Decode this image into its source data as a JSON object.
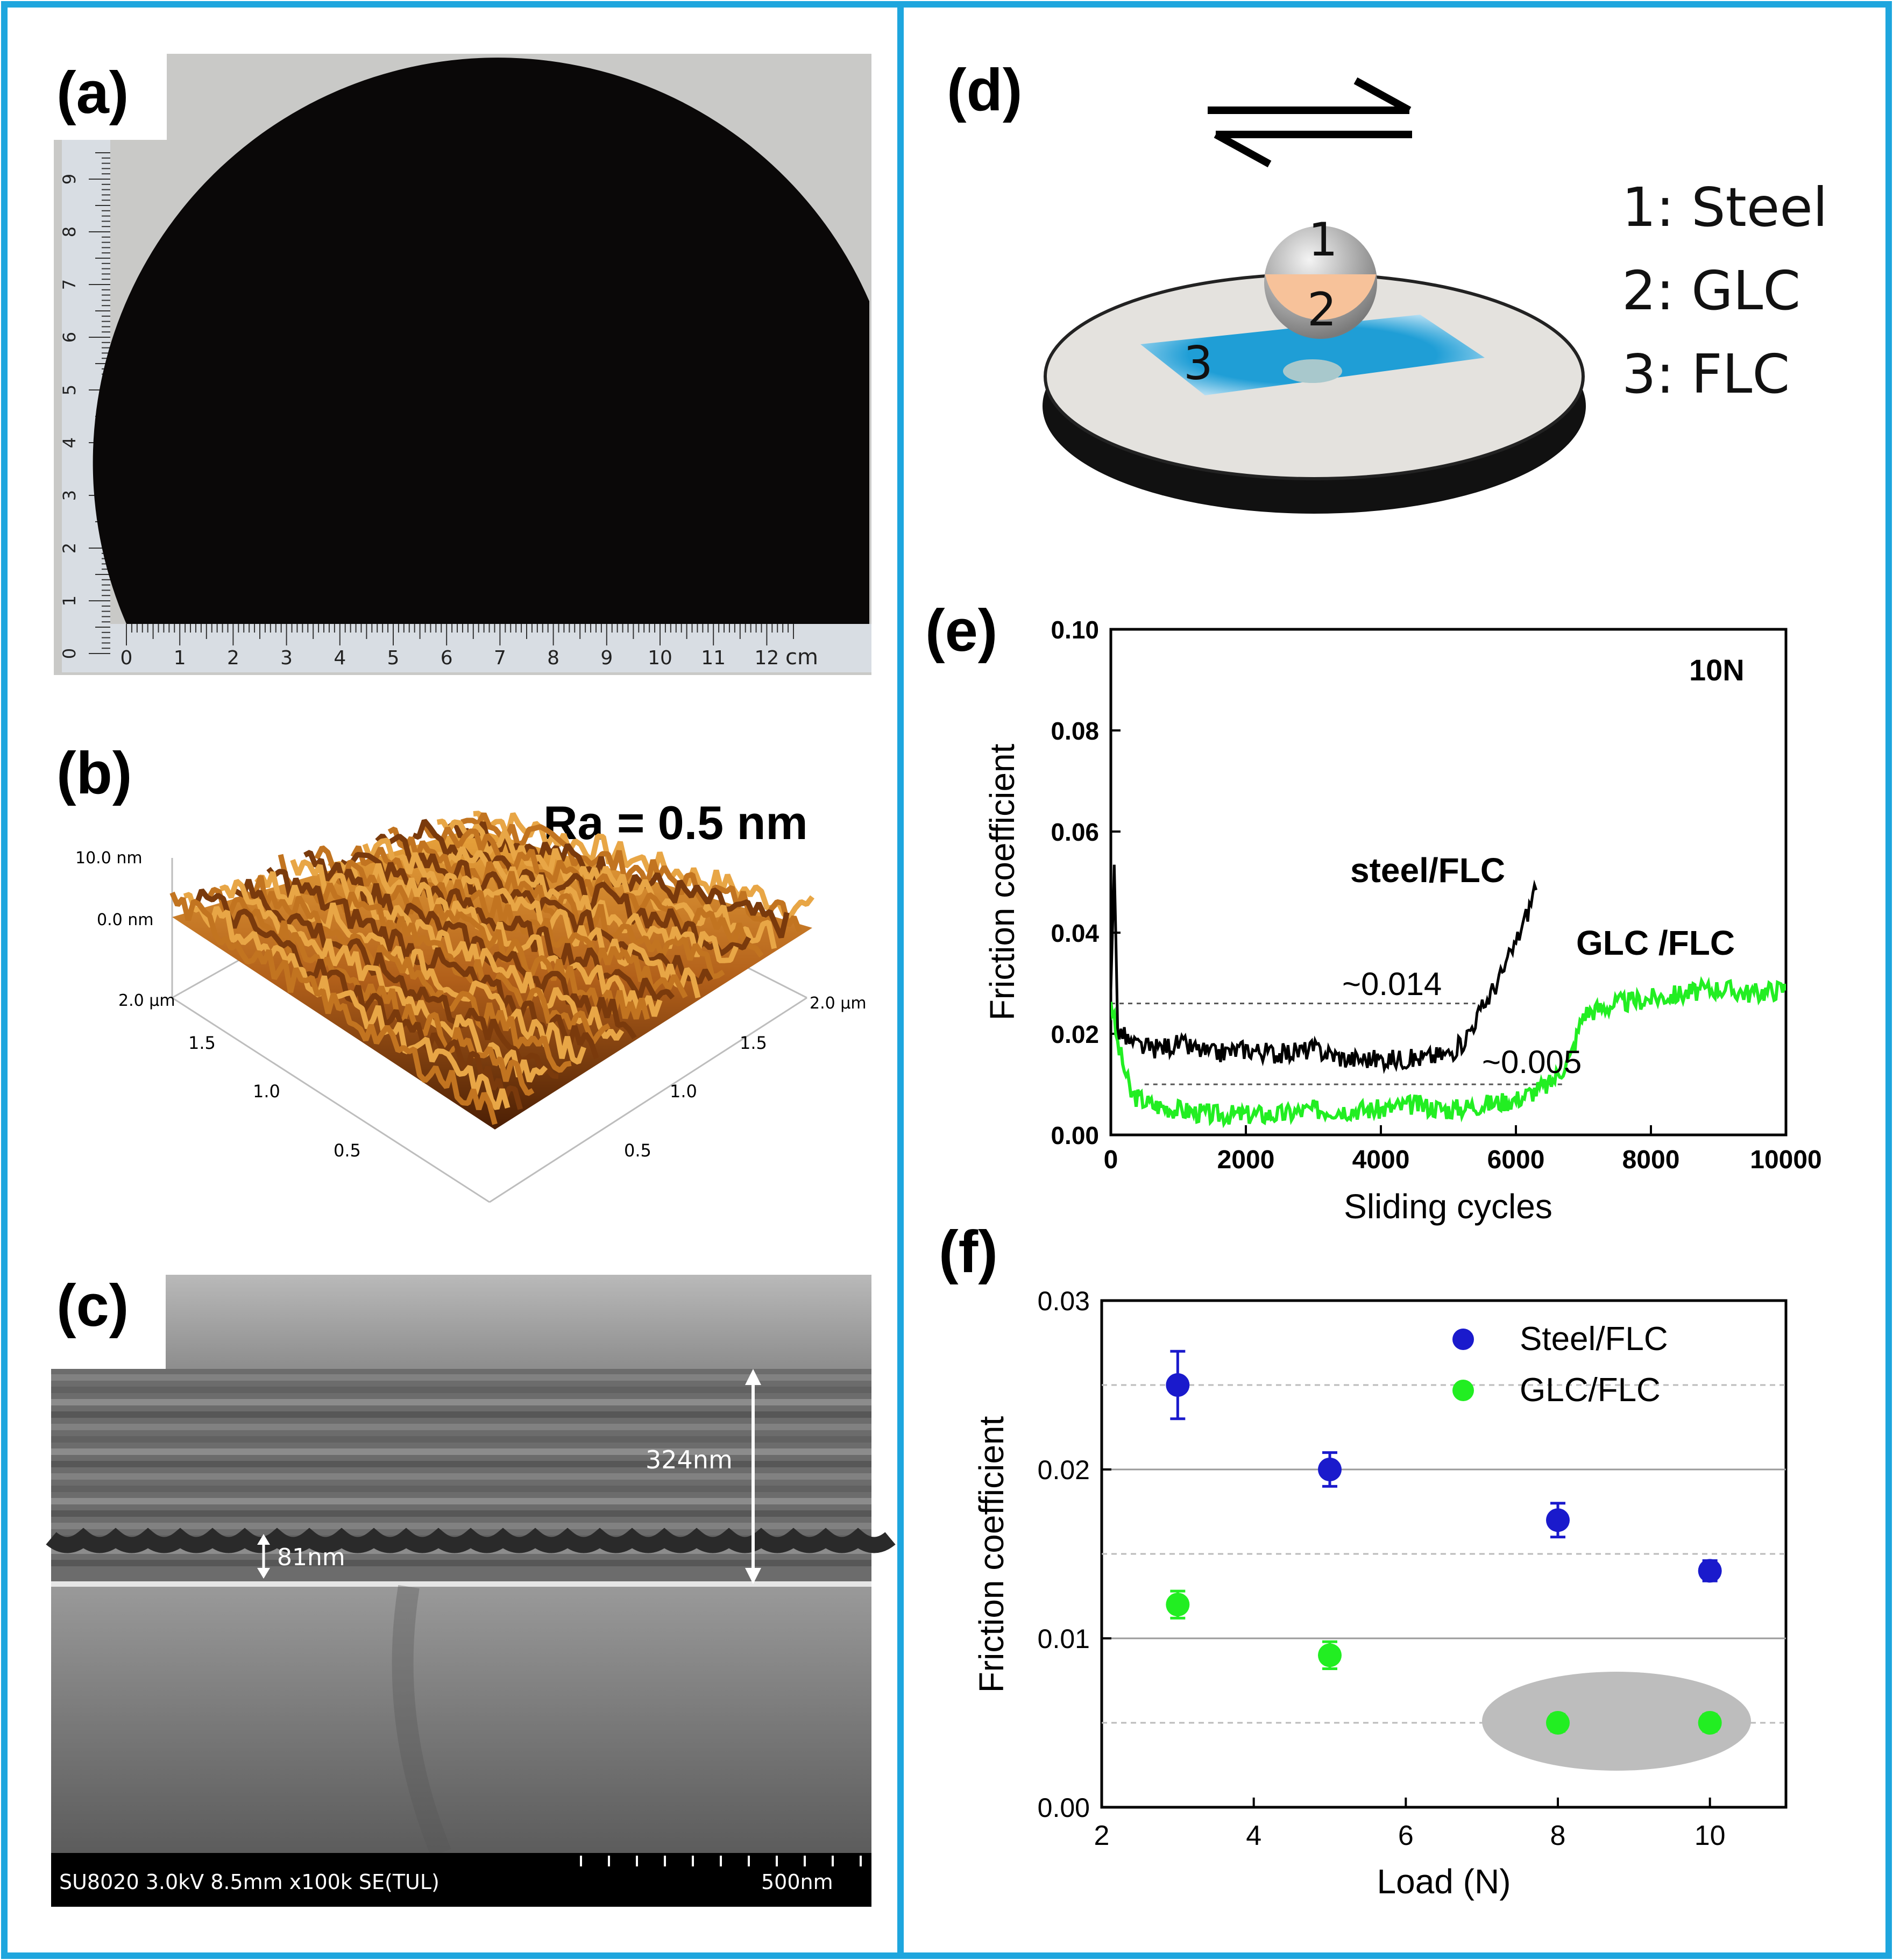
{
  "colors": {
    "frame": "#1ea6de",
    "steel_series": "#1a1acc",
    "glc_series": "#22ee22",
    "black_series": "#000000",
    "wafer": "#0a0808",
    "afm_dark": "#5a2a08",
    "afm_light": "#d98a26",
    "flc_blue": "#1f9ed6",
    "glc_ball": "#f7c29a",
    "highlight": "#bdbdbd"
  },
  "panels": {
    "a": {
      "label": "(a)",
      "ruler_unit": "cm",
      "h_ticks": [
        "0",
        "1",
        "2",
        "3",
        "4",
        "5",
        "6",
        "7",
        "8",
        "9",
        "10",
        "11",
        "12"
      ],
      "v_ticks": [
        "0",
        "1",
        "2",
        "3",
        "4",
        "5",
        "6",
        "7",
        "8",
        "9"
      ]
    },
    "b": {
      "label": "(b)",
      "roughness": "Ra = 0.5 nm",
      "z_ticks": [
        "10.0 nm",
        "0.0 nm"
      ],
      "left_ticks": [
        "2.0 µm",
        "1.5",
        "1.0",
        "0.5"
      ],
      "right_ticks": [
        "2.0 µm",
        "1.5",
        "1.0",
        "0.5"
      ]
    },
    "c": {
      "label": "(c)",
      "total_thickness": "324nm",
      "period": "81nm",
      "sem_info": "SU8020 3.0kV 8.5mm x100k SE(TUL)",
      "scale_bar": "500nm"
    },
    "d": {
      "label": "(d)",
      "ball_numbers": [
        "1",
        "2",
        "3"
      ],
      "legend": [
        "1: Steel",
        "2: GLC",
        "3: FLC"
      ]
    },
    "e": {
      "label": "(e)",
      "load": "10N",
      "xlabel": "Sliding cycles",
      "ylabel": "Friction coefficient",
      "x_ticks": [
        "0",
        "2000",
        "4000",
        "6000",
        "8000",
        "10000"
      ],
      "y_ticks": [
        "0.00",
        "0.02",
        "0.04",
        "0.06",
        "0.08",
        "0.10"
      ],
      "series_labels": [
        "steel/FLC",
        "GLC /FLC"
      ],
      "annotations": [
        "~0.014",
        "~0.005"
      ]
    },
    "f": {
      "label": "(f)",
      "xlabel": "Load (N)",
      "ylabel": "Friction coefficient",
      "x_ticks": [
        "2",
        "4",
        "6",
        "8",
        "10"
      ],
      "y_ticks": [
        "0.00",
        "0.01",
        "0.02",
        "0.03"
      ],
      "legend": [
        "Steel/FLC",
        "GLC/FLC"
      ]
    }
  },
  "chart_data": [
    {
      "type": "line",
      "title": "10N",
      "xlabel": "Sliding cycles",
      "ylabel": "Friction coefficient",
      "xlim": [
        0,
        10000
      ],
      "ylim": [
        0,
        0.1
      ],
      "series": [
        {
          "name": "steel/FLC",
          "x": [
            0,
            50,
            100,
            300,
            600,
            1000,
            1500,
            2000,
            2500,
            3000,
            3500,
            4000,
            4500,
            5000,
            5200,
            5500,
            5800,
            6000,
            6200,
            6300
          ],
          "y": [
            0.03,
            0.054,
            0.021,
            0.018,
            0.017,
            0.018,
            0.016,
            0.017,
            0.016,
            0.017,
            0.015,
            0.015,
            0.015,
            0.016,
            0.018,
            0.025,
            0.032,
            0.038,
            0.045,
            0.05
          ]
        },
        {
          "name": "GLC /FLC",
          "x": [
            0,
            100,
            300,
            600,
            1000,
            1500,
            2000,
            2500,
            3000,
            3500,
            4000,
            4500,
            5000,
            5500,
            6000,
            6500,
            6800,
            7000,
            7500,
            8000,
            8500,
            9000,
            9500,
            10000
          ],
          "y": [
            0.027,
            0.018,
            0.008,
            0.006,
            0.005,
            0.004,
            0.004,
            0.004,
            0.005,
            0.005,
            0.005,
            0.006,
            0.005,
            0.006,
            0.007,
            0.01,
            0.015,
            0.024,
            0.026,
            0.027,
            0.028,
            0.029,
            0.028,
            0.029
          ]
        }
      ],
      "reference_lines": [
        {
          "y": 0.026,
          "x_range": [
            0,
            5400
          ],
          "label": "~0.014"
        },
        {
          "y": 0.01,
          "x_range": [
            500,
            6700
          ],
          "label": "~0.005"
        }
      ]
    },
    {
      "type": "scatter",
      "xlabel": "Load (N)",
      "ylabel": "Friction coefficient",
      "xlim": [
        2,
        11
      ],
      "ylim": [
        0,
        0.03
      ],
      "series": [
        {
          "name": "Steel/FLC",
          "x": [
            3,
            5,
            8,
            10
          ],
          "y": [
            0.025,
            0.02,
            0.017,
            0.014
          ],
          "err": [
            0.002,
            0.001,
            0.001,
            0.0006
          ]
        },
        {
          "name": "GLC/FLC",
          "x": [
            3,
            5,
            8,
            10
          ],
          "y": [
            0.012,
            0.009,
            0.005,
            0.005
          ],
          "err": [
            0.0008,
            0.0008,
            0.0005,
            0.0005
          ]
        }
      ],
      "grid_y": [
        0.005,
        0.01,
        0.015,
        0.02,
        0.025
      ]
    }
  ]
}
